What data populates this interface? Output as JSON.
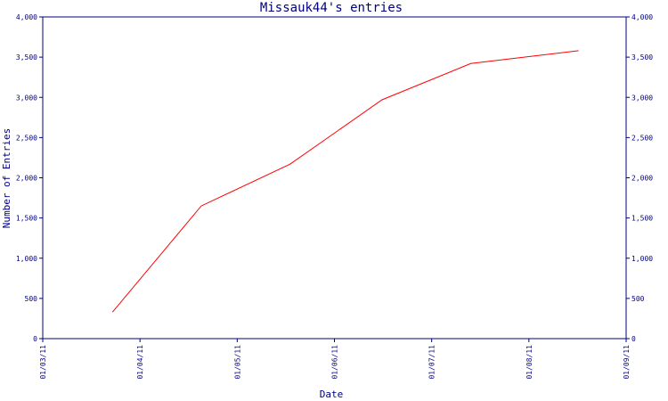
{
  "chart_data": {
    "type": "line",
    "title": "Missauk44's entries",
    "xlabel": "Date",
    "ylabel": "Number of Entries",
    "x_ticks": [
      "01/03/11",
      "01/04/11",
      "01/05/11",
      "01/06/11",
      "01/07/11",
      "01/08/11",
      "01/09/11"
    ],
    "y_ticks": [
      "0",
      "500",
      "1,000",
      "1,500",
      "2,000",
      "2,500",
      "3,000",
      "3,500",
      "4,000"
    ],
    "ylim": [
      0,
      4000
    ],
    "xlim": [
      "2011-03-01",
      "2011-09-01"
    ],
    "grid": false,
    "series": [
      {
        "color": "#ff0000",
        "points": [
          {
            "x": "2011-03-23",
            "y": 330
          },
          {
            "x": "2011-04-20",
            "y": 1650
          },
          {
            "x": "2011-05-18",
            "y": 2170
          },
          {
            "x": "2011-06-16",
            "y": 2970
          },
          {
            "x": "2011-07-14",
            "y": 3420
          },
          {
            "x": "2011-08-17",
            "y": 3580
          }
        ]
      }
    ]
  }
}
